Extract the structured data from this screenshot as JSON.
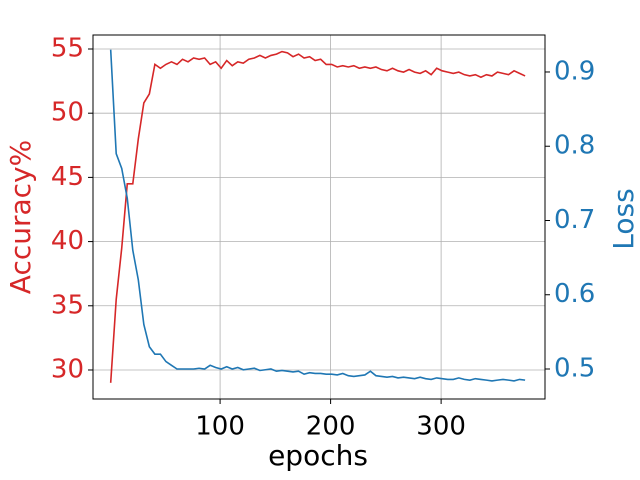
{
  "chart_data": {
    "type": "line",
    "xlabel": "epochs",
    "ylabel": "Accuracy%",
    "y2label": "Loss",
    "x": [
      1,
      6,
      11,
      16,
      21,
      26,
      31,
      36,
      41,
      46,
      51,
      56,
      61,
      66,
      71,
      76,
      81,
      86,
      91,
      96,
      101,
      106,
      111,
      116,
      121,
      126,
      131,
      136,
      141,
      146,
      151,
      156,
      161,
      166,
      171,
      176,
      181,
      186,
      191,
      196,
      201,
      206,
      211,
      216,
      221,
      226,
      231,
      236,
      241,
      246,
      251,
      256,
      261,
      266,
      271,
      276,
      281,
      286,
      291,
      296,
      301,
      306,
      311,
      316,
      321,
      326,
      331,
      336,
      341,
      346,
      351,
      356,
      361,
      366,
      371,
      376
    ],
    "series": [
      {
        "name": "Accuracy%",
        "color": "#d62728",
        "axis": "y",
        "values": [
          29,
          35.5,
          39.5,
          44.5,
          44.5,
          48,
          50.8,
          51.5,
          53.8,
          53.5,
          53.8,
          54,
          53.8,
          54.2,
          54,
          54.3,
          54.2,
          54.3,
          53.8,
          54,
          53.5,
          54.1,
          53.7,
          54,
          53.9,
          54.2,
          54.3,
          54.5,
          54.3,
          54.5,
          54.6,
          54.8,
          54.7,
          54.4,
          54.6,
          54.3,
          54.4,
          54.1,
          54.2,
          53.8,
          53.8,
          53.6,
          53.7,
          53.6,
          53.7,
          53.5,
          53.6,
          53.5,
          53.6,
          53.4,
          53.3,
          53.5,
          53.3,
          53.2,
          53.4,
          53.2,
          53.1,
          53.3,
          53.0,
          53.5,
          53.3,
          53.2,
          53.1,
          53.2,
          53.0,
          52.9,
          53.0,
          52.8,
          53.0,
          52.9,
          53.2,
          53.1,
          53.0,
          53.3,
          53.1,
          52.9
        ]
      },
      {
        "name": "Loss",
        "color": "#1f77b4",
        "axis": "y2",
        "values": [
          0.93,
          0.79,
          0.77,
          0.73,
          0.66,
          0.62,
          0.56,
          0.53,
          0.52,
          0.52,
          0.51,
          0.505,
          0.5,
          0.5,
          0.5,
          0.5,
          0.501,
          0.5,
          0.505,
          0.502,
          0.5,
          0.503,
          0.5,
          0.502,
          0.499,
          0.5,
          0.501,
          0.498,
          0.499,
          0.5,
          0.497,
          0.498,
          0.497,
          0.496,
          0.497,
          0.493,
          0.495,
          0.494,
          0.494,
          0.493,
          0.493,
          0.492,
          0.494,
          0.491,
          0.49,
          0.491,
          0.492,
          0.497,
          0.491,
          0.49,
          0.489,
          0.49,
          0.488,
          0.489,
          0.488,
          0.487,
          0.489,
          0.487,
          0.486,
          0.488,
          0.487,
          0.486,
          0.486,
          0.488,
          0.486,
          0.485,
          0.487,
          0.486,
          0.485,
          0.484,
          0.485,
          0.486,
          0.485,
          0.484,
          0.486,
          0.485
        ]
      }
    ],
    "xlim": [
      -15,
      394
    ],
    "xticks": [
      100,
      200,
      300
    ],
    "ylim": [
      27.74,
      56.09
    ],
    "yticks": [
      30,
      35,
      40,
      45,
      50,
      55
    ],
    "y2lim": [
      0.4596,
      0.9498
    ],
    "y2ticks": [
      0.5,
      0.6,
      0.7,
      0.8,
      0.9
    ],
    "grid": true
  }
}
